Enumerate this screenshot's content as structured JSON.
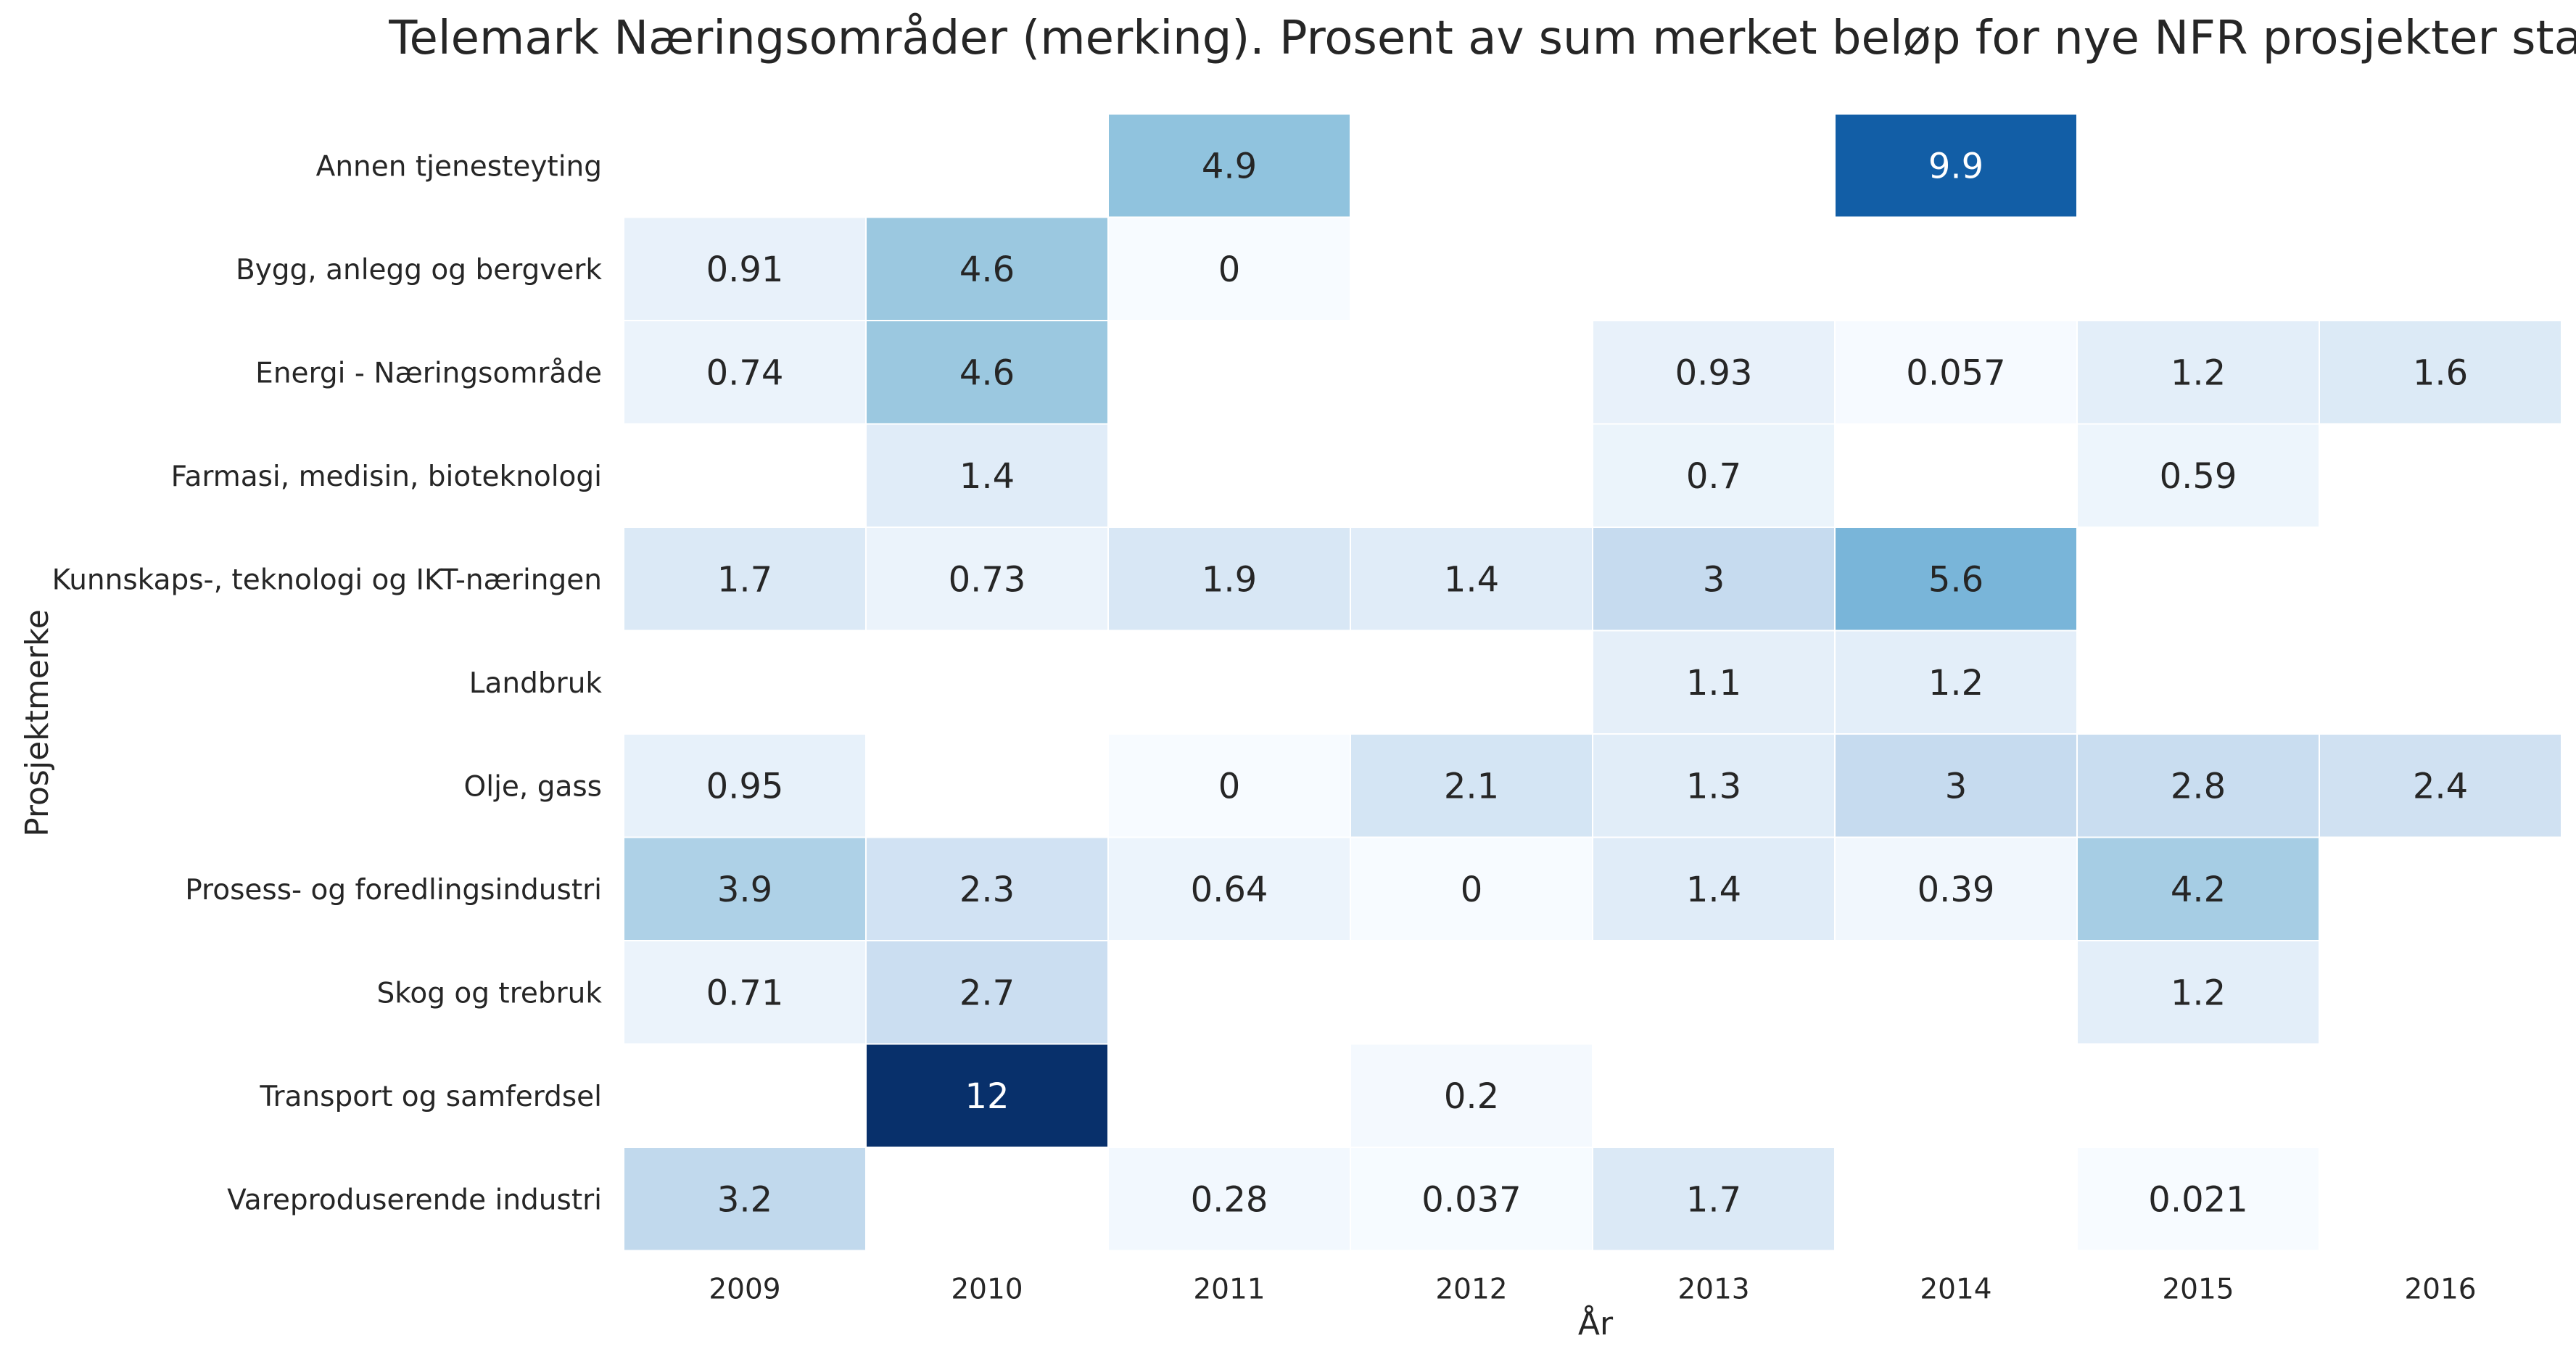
{
  "chart_data": {
    "type": "heatmap",
    "title": "Telemark Næringsområder (merking). Prosent av sum merket beløp for nye NFR prosjekter startet i året",
    "xlabel": "År",
    "ylabel": "Prosjektmerke",
    "x": [
      "2009",
      "2010",
      "2011",
      "2012",
      "2013",
      "2014",
      "2015",
      "2016"
    ],
    "y": [
      "Annen tjenesteyting",
      "Bygg, anlegg og bergverk",
      "Energi - Næringsområde",
      "Farmasi, medisin, bioteknologi",
      "Kunnskaps-, teknologi og IKT-næringen",
      "Landbruk",
      "Olje, gass",
      "Prosess- og foredlingsindustri",
      "Skog og trebruk",
      "Transport og samferdsel",
      "Vareproduserende industri"
    ],
    "values": [
      [
        null,
        null,
        4.9,
        null,
        null,
        9.9,
        null,
        null
      ],
      [
        0.91,
        4.6,
        0,
        null,
        null,
        null,
        null,
        null
      ],
      [
        0.74,
        4.6,
        null,
        null,
        0.93,
        0.057,
        1.2,
        1.6
      ],
      [
        null,
        1.4,
        null,
        null,
        0.7,
        null,
        0.59,
        null
      ],
      [
        1.7,
        0.73,
        1.9,
        1.4,
        3,
        5.6,
        null,
        null
      ],
      [
        null,
        null,
        null,
        null,
        1.1,
        1.2,
        null,
        null
      ],
      [
        0.95,
        null,
        0,
        2.1,
        1.3,
        3,
        2.8,
        2.4
      ],
      [
        3.9,
        2.3,
        0.64,
        0,
        1.4,
        0.39,
        4.2,
        null
      ],
      [
        0.71,
        2.7,
        null,
        null,
        null,
        null,
        1.2,
        null
      ],
      [
        null,
        12,
        null,
        0.2,
        null,
        null,
        null,
        null
      ],
      [
        3.2,
        null,
        0.28,
        0.037,
        1.7,
        null,
        0.021,
        null
      ]
    ],
    "colormap": "Blues",
    "vmin": 0,
    "vmax": 12,
    "colors": {
      "low": "#f7fbff",
      "high": "#08306b",
      "text_dark": "#262626",
      "text_light": "#ffffff",
      "grid": "#ffffff"
    }
  }
}
